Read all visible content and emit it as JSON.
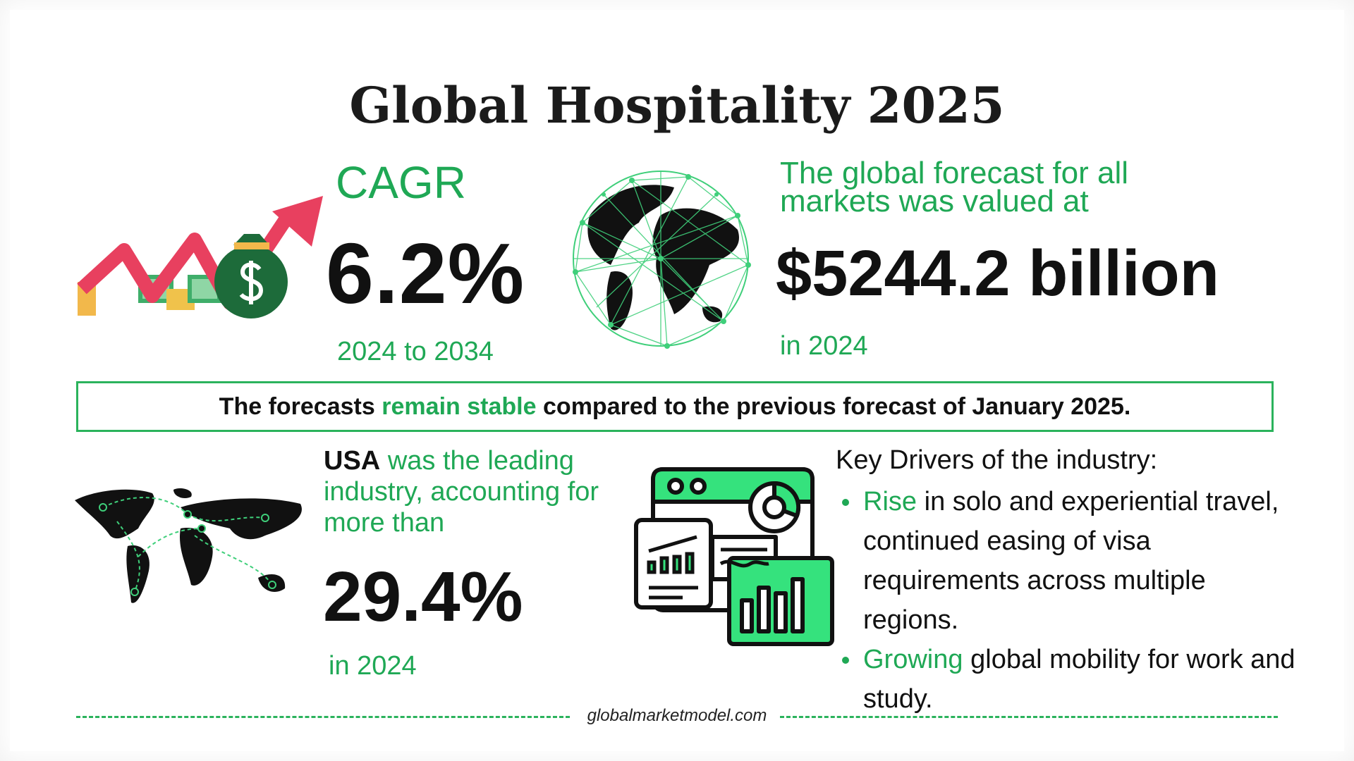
{
  "title": "Global Hospitality 2025",
  "cagr": {
    "label": "CAGR",
    "value": "6.2%",
    "period": "2024 to 2034"
  },
  "forecast": {
    "intro": "The global forecast for all markets was valued at",
    "value": "$5244.2 billion",
    "year": "in 2024"
  },
  "banner": {
    "before": "The forecasts",
    "highlight": "remain stable",
    "after": "compared to the previous forecast of January 2025."
  },
  "usa": {
    "country": "USA",
    "text": "was the leading industry, accounting for more than",
    "value": "29.4%",
    "year": "in 2024"
  },
  "drivers": {
    "heading": "Key Drivers of the industry:",
    "items": [
      {
        "highlight": "Rise",
        "text": "in solo and experiential travel, continued easing of visa requirements across multiple regions."
      },
      {
        "highlight": "Growing",
        "text": "global mobility for work and study."
      }
    ]
  },
  "footer": "globalmarketmodel.com"
}
